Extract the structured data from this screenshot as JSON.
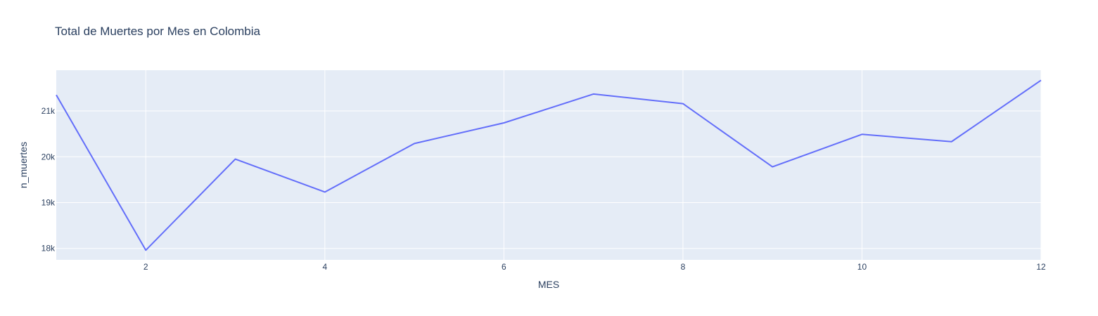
{
  "chart_data": {
    "type": "line",
    "title": "Total de Muertes por Mes en Colombia",
    "xlabel": "MES",
    "ylabel": "n_muertes",
    "x": [
      1,
      2,
      3,
      4,
      5,
      6,
      7,
      8,
      9,
      10,
      11,
      12
    ],
    "series": [
      {
        "values": [
          21350,
          17960,
          19950,
          19230,
          20290,
          20740,
          21370,
          21160,
          19780,
          20490,
          20330,
          21670
        ]
      }
    ],
    "xlim": [
      1,
      12
    ],
    "ylim": [
      17750,
      21890
    ],
    "x_ticks": [
      2,
      4,
      6,
      8,
      10,
      12
    ],
    "x_tick_labels": [
      "2",
      "4",
      "6",
      "8",
      "10",
      "12"
    ],
    "y_ticks": [
      18000,
      19000,
      20000,
      21000
    ],
    "y_tick_labels": [
      "18k",
      "19k",
      "20k",
      "21k"
    ],
    "grid": true,
    "colors": {
      "line": "#636efa",
      "plot_background": "#e5ecf6",
      "grid": "#ffffff",
      "text": "#2a3f5f"
    }
  }
}
